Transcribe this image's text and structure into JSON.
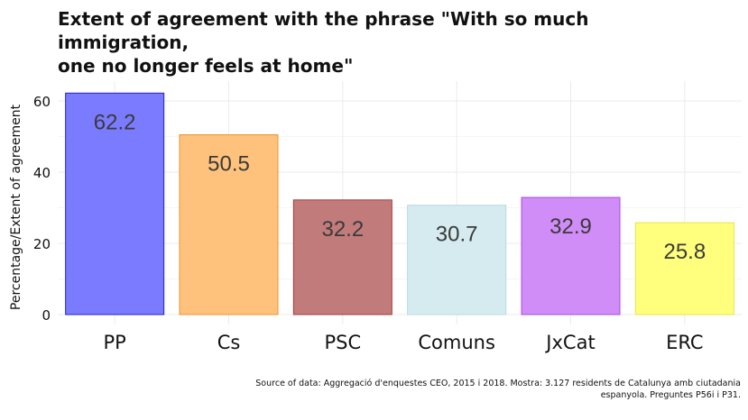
{
  "chart_data": {
    "type": "bar",
    "title_lines": [
      "Extent of agreement with the phrase \"With so much immigration,",
      "one no longer feels at home\""
    ],
    "ylabel": "Percentage/Extent of agreement",
    "xlabel": "",
    "categories": [
      "PP",
      "Cs",
      "PSC",
      "Comuns",
      "JxCat",
      "ERC"
    ],
    "values": [
      62.2,
      50.5,
      32.2,
      30.7,
      32.9,
      25.8
    ],
    "value_labels": [
      "62.2",
      "50.5",
      "32.2",
      "30.7",
      "32.9",
      "25.8"
    ],
    "colors": [
      "#7b7bff",
      "#ffc27d",
      "#c27b7b",
      "#d6ebf0",
      "#d08cf7",
      "#ffff7d"
    ],
    "border_colors": [
      "#2222cc",
      "#e6962e",
      "#a83a3a",
      "#b8d8e2",
      "#a84ae6",
      "#e6e64a"
    ],
    "ylim": [
      0,
      65
    ],
    "yticks": [
      0,
      20,
      40,
      60
    ],
    "grid": true,
    "legend": "none"
  },
  "caption_lines": [
    "Source of data: Aggregació d'enquestes CEO, 2015 i 2018. Mostra: 3.127 residents de Catalunya amb ciutadania",
    "espanyola. Preguntes P56i i P31."
  ]
}
